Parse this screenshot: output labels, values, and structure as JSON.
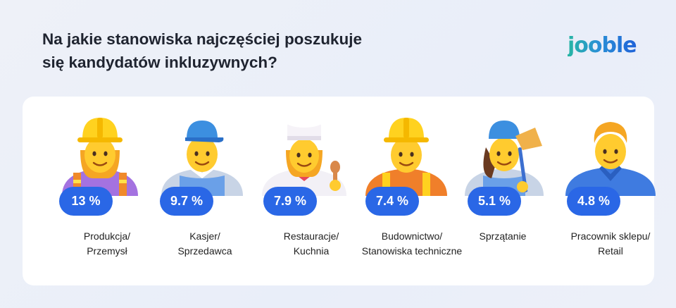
{
  "title": {
    "line1": "Na jakie stanowiska najczęściej poszukuje",
    "line2": "się kandydatów inkluzywnych?"
  },
  "logo": {
    "text": "jooble"
  },
  "colors": {
    "badge": "#2a67e6",
    "brand_start": "#27b6a4",
    "brand_end": "#1f62d8"
  },
  "chart_data": {
    "type": "bar",
    "categories": [
      "Produkcja/ Przemysł",
      "Kasjer/ Sprzedawca",
      "Restauracje/ Kuchnia",
      "Budownictwo/ Stanowiska techniczne",
      "Sprzątanie",
      "Pracownik sklepu/ Retail"
    ],
    "values": [
      13,
      9.7,
      7.9,
      7.4,
      5.1,
      4.8
    ],
    "unit": "%"
  },
  "items": [
    {
      "value_label": "13 %",
      "label_lines": [
        "Produkcja/",
        "Przemysł"
      ],
      "icon": "woman-construction-worker-icon"
    },
    {
      "value_label": "9.7 %",
      "label_lines": [
        "Kasjer/",
        "Sprzedawca"
      ],
      "icon": "cashier-icon"
    },
    {
      "value_label": "7.9 %",
      "label_lines": [
        "Restauracje/",
        "Kuchnia"
      ],
      "icon": "woman-cook-icon"
    },
    {
      "value_label": "7.4 %",
      "label_lines": [
        "Budownictwo/",
        "Stanowiska techniczne"
      ],
      "icon": "construction-worker-icon"
    },
    {
      "value_label": "5.1 %",
      "label_lines": [
        "Sprzątanie"
      ],
      "icon": "cleaner-icon"
    },
    {
      "value_label": "4.8 %",
      "label_lines": [
        "Pracownik sklepu/",
        "Retail"
      ],
      "icon": "shop-worker-icon"
    }
  ]
}
